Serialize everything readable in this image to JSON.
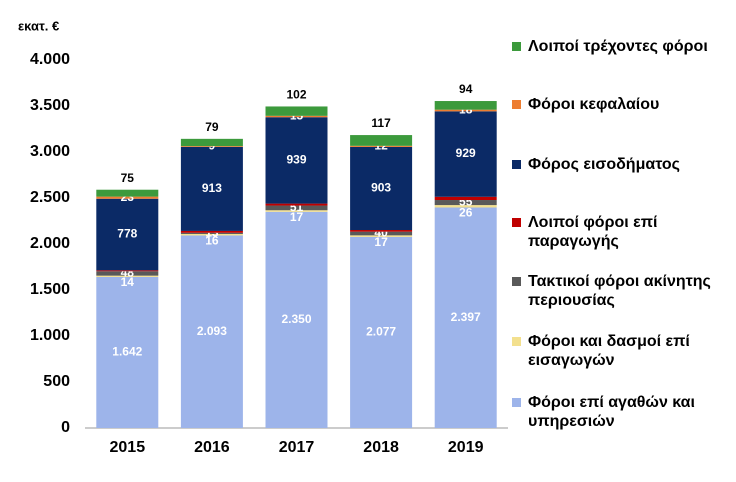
{
  "chart_data": {
    "type": "stacked_bar",
    "y_label": "εκατ. €",
    "categories": [
      "2015",
      "2016",
      "2017",
      "2018",
      "2019"
    ],
    "ylim": [
      0,
      4000
    ],
    "yticks": [
      0,
      500,
      {
        "value": 1000,
        "label": "1.000"
      },
      {
        "value": 1500,
        "label": "1.500"
      },
      {
        "value": 2000,
        "label": "2.000"
      },
      {
        "value": 2500,
        "label": "2.500"
      },
      {
        "value": 3000,
        "label": "3.000"
      },
      {
        "value": 3500,
        "label": "3.500"
      },
      {
        "value": 4000,
        "label": "4.000"
      }
    ],
    "legend": "right",
    "series": [
      {
        "name": "Φόροι επί αγαθών και υπηρεσιών",
        "color": "#9db4ea",
        "values": [
          1642,
          2093,
          2350,
          2077,
          2397
        ],
        "value_labels": [
          "1.642",
          "2.093",
          "2.350",
          "2.077",
          "2.397"
        ]
      },
      {
        "name": "Φόροι και δασμοί επί εισαγωγών",
        "color": "#f3e08e",
        "values": [
          14,
          16,
          17,
          17,
          26
        ]
      },
      {
        "name": "Τακτικοί φόροι ακίνητης περιουσίας",
        "color": "#595959",
        "values": [
          48,
          13,
          51,
          40,
          55
        ]
      },
      {
        "name": "Λοιποί φόροι επί παραγωγής",
        "color": "#c00000",
        "values": [
          10,
          20,
          21,
          18,
          35
        ]
      },
      {
        "name": "Φόρος εισοδήματος",
        "color": "#0b2a66",
        "values": [
          778,
          913,
          939,
          903,
          929
        ]
      },
      {
        "name": "Φόροι κεφαλαίου",
        "color": "#ed7d31",
        "values": [
          23,
          9,
          15,
          12,
          18
        ]
      },
      {
        "name": "Λοιποί τρέχοντες φόροι",
        "color": "#3c9a3c",
        "values": [
          75,
          79,
          102,
          117,
          94
        ]
      }
    ]
  }
}
